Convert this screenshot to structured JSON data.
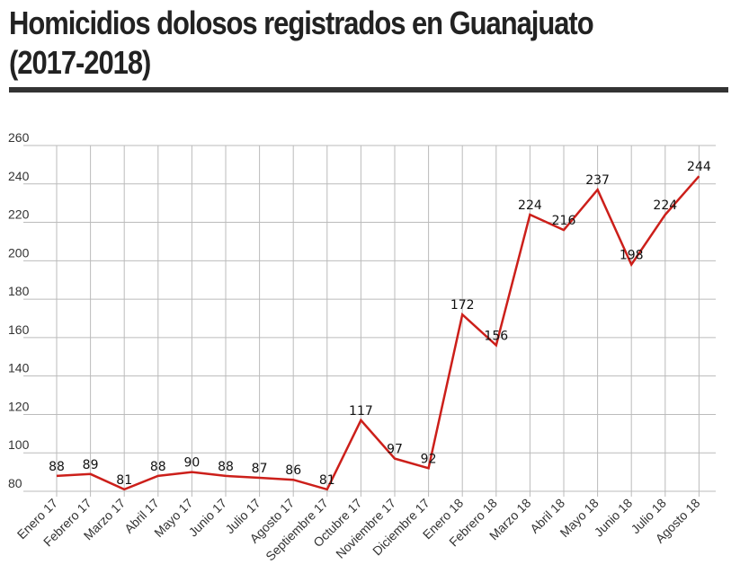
{
  "title": "Homicidios dolosos registrados en Guanajuato (2017-2018)",
  "chart_data": {
    "type": "line",
    "title": "Homicidios dolosos registrados en Guanajuato (2017-2018)",
    "xlabel": "",
    "ylabel": "",
    "ylim": [
      80,
      260
    ],
    "yticks": [
      80,
      100,
      120,
      140,
      160,
      180,
      200,
      220,
      240,
      260
    ],
    "grid": true,
    "categories": [
      "Enero 17",
      "Febrero 17",
      "Marzo 17",
      "Abril 17",
      "Mayo 17",
      "Junio 17",
      "Julio 17",
      "Agosto 17",
      "Septiembre 17",
      "Octubre 17",
      "Noviembre 17",
      "Diciembre 17",
      "Enero 18",
      "Febrero 18",
      "Marzo 18",
      "Abril 18",
      "Mayo 18",
      "Junio 18",
      "Julio 18",
      "Agosto 18"
    ],
    "series": [
      {
        "values": [
          88,
          89,
          81,
          88,
          90,
          88,
          87,
          86,
          81,
          117,
          97,
          92,
          172,
          156,
          224,
          216,
          237,
          198,
          224,
          244
        ]
      }
    ],
    "colors": {
      "line": "#cc1f1a",
      "grid": "#bbbbbb",
      "rule": "#333333"
    }
  }
}
